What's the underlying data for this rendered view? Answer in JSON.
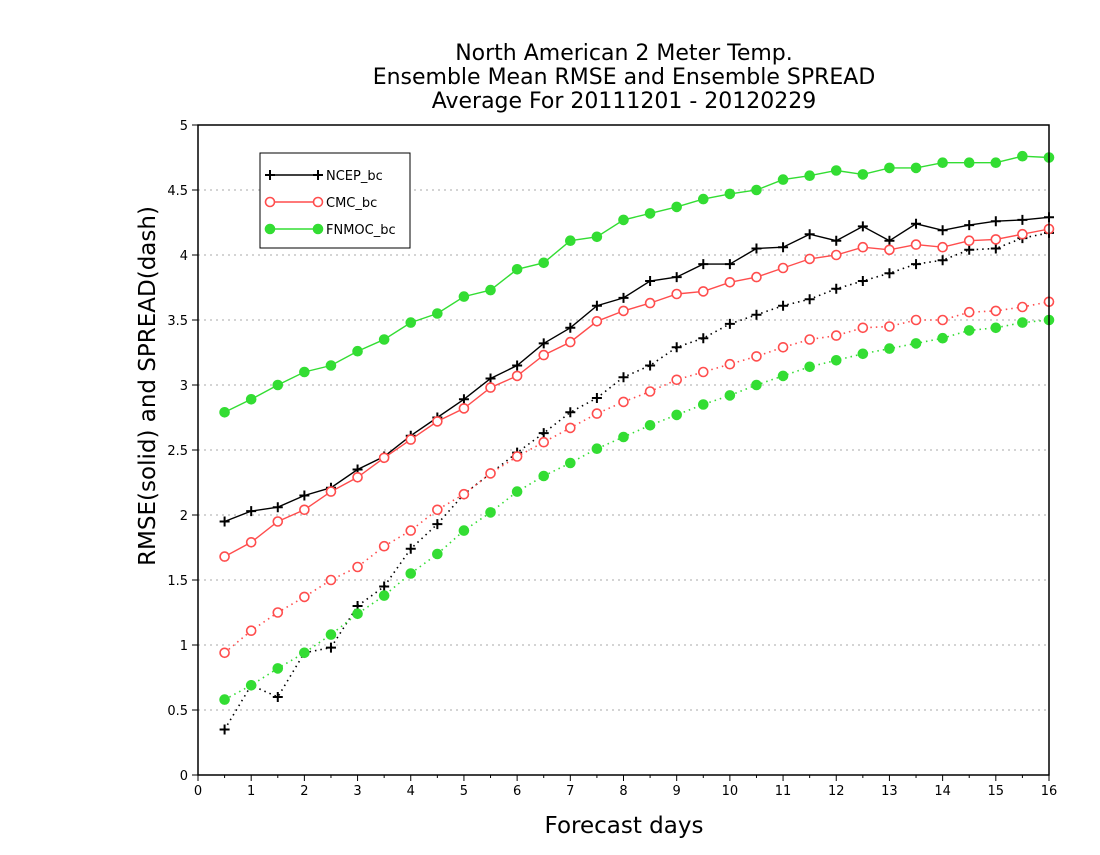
{
  "chart_data": {
    "type": "line",
    "title": [
      "North American 2 Meter Temp.",
      "Ensemble Mean RMSE and Ensemble SPREAD",
      "Average For 20111201 - 20120229"
    ],
    "xlabel": "Forecast days",
    "ylabel": "RMSE(solid) and SPREAD(dash)",
    "xlim": [
      0,
      16
    ],
    "ylim": [
      0,
      5
    ],
    "xticks": [
      0,
      1,
      2,
      3,
      4,
      5,
      6,
      7,
      8,
      9,
      10,
      11,
      12,
      13,
      14,
      15,
      16
    ],
    "yticks": [
      0,
      0.5,
      1,
      1.5,
      2,
      2.5,
      3,
      3.5,
      4,
      4.5,
      5
    ],
    "ytick_labels": [
      "0",
      "0.5",
      "1",
      "1.5",
      "2",
      "2.5",
      "3",
      "3.5",
      "4",
      "4.5",
      "5"
    ],
    "grid": "horizontal dotted",
    "legend_position": "top-left",
    "x": [
      0.5,
      1,
      1.5,
      2,
      2.5,
      3,
      3.5,
      4,
      4.5,
      5,
      5.5,
      6,
      6.5,
      7,
      7.5,
      8,
      8.5,
      9,
      9.5,
      10,
      10.5,
      11,
      11.5,
      12,
      12.5,
      13,
      13.5,
      14,
      14.5,
      15,
      15.5,
      16
    ],
    "series": [
      {
        "name": "NCEP_bc",
        "color": "#000000",
        "marker": "plus",
        "style": "solid",
        "in_legend": true,
        "values": [
          1.95,
          2.03,
          2.06,
          2.15,
          2.21,
          2.35,
          2.45,
          2.61,
          2.75,
          2.89,
          3.05,
          3.15,
          3.32,
          3.44,
          3.61,
          3.67,
          3.8,
          3.83,
          3.93,
          3.93,
          4.05,
          4.06,
          4.16,
          4.11,
          4.22,
          4.11,
          4.24,
          4.19,
          4.23,
          4.26,
          4.27,
          4.29
        ]
      },
      {
        "name": "CMC_bc",
        "color": "#ff4d4d",
        "marker": "open-circle",
        "style": "solid",
        "in_legend": true,
        "values": [
          1.68,
          1.79,
          1.95,
          2.04,
          2.18,
          2.29,
          2.44,
          2.58,
          2.72,
          2.82,
          2.98,
          3.07,
          3.23,
          3.33,
          3.49,
          3.57,
          3.63,
          3.7,
          3.72,
          3.79,
          3.83,
          3.9,
          3.97,
          4.0,
          4.06,
          4.04,
          4.08,
          4.06,
          4.11,
          4.12,
          4.16,
          4.2
        ]
      },
      {
        "name": "FNMOC_bc",
        "color": "#33dd33",
        "marker": "filled-circle",
        "style": "solid",
        "in_legend": true,
        "values": [
          2.79,
          2.89,
          3.0,
          3.1,
          3.15,
          3.26,
          3.35,
          3.48,
          3.55,
          3.68,
          3.73,
          3.89,
          3.94,
          4.11,
          4.14,
          4.27,
          4.32,
          4.37,
          4.43,
          4.47,
          4.5,
          4.58,
          4.61,
          4.65,
          4.62,
          4.67,
          4.67,
          4.71,
          4.71,
          4.71,
          4.76,
          4.75
        ]
      },
      {
        "name": "",
        "color": "#000000",
        "marker": "plus",
        "style": "dotted",
        "in_legend": false,
        "values": [
          0.35,
          0.69,
          0.6,
          0.94,
          0.98,
          1.3,
          1.45,
          1.74,
          1.93,
          2.16,
          2.32,
          2.48,
          2.63,
          2.79,
          2.9,
          3.06,
          3.15,
          3.29,
          3.36,
          3.47,
          3.54,
          3.61,
          3.66,
          3.74,
          3.8,
          3.86,
          3.93,
          3.96,
          4.04,
          4.05,
          4.13,
          4.17
        ]
      },
      {
        "name": "",
        "color": "#ff4d4d",
        "marker": "open-circle",
        "style": "dotted",
        "in_legend": false,
        "values": [
          0.94,
          1.11,
          1.25,
          1.37,
          1.5,
          1.6,
          1.76,
          1.88,
          2.04,
          2.16,
          2.32,
          2.45,
          2.56,
          2.67,
          2.78,
          2.87,
          2.95,
          3.04,
          3.1,
          3.16,
          3.22,
          3.29,
          3.35,
          3.38,
          3.44,
          3.45,
          3.5,
          3.5,
          3.56,
          3.57,
          3.6,
          3.64
        ]
      },
      {
        "name": "",
        "color": "#33dd33",
        "marker": "filled-circle",
        "style": "dotted",
        "in_legend": false,
        "values": [
          0.58,
          0.69,
          0.82,
          0.94,
          1.08,
          1.24,
          1.38,
          1.55,
          1.7,
          1.88,
          2.02,
          2.18,
          2.3,
          2.4,
          2.51,
          2.6,
          2.69,
          2.77,
          2.85,
          2.92,
          3.0,
          3.07,
          3.14,
          3.19,
          3.24,
          3.28,
          3.32,
          3.36,
          3.42,
          3.44,
          3.48,
          3.5
        ]
      }
    ]
  }
}
